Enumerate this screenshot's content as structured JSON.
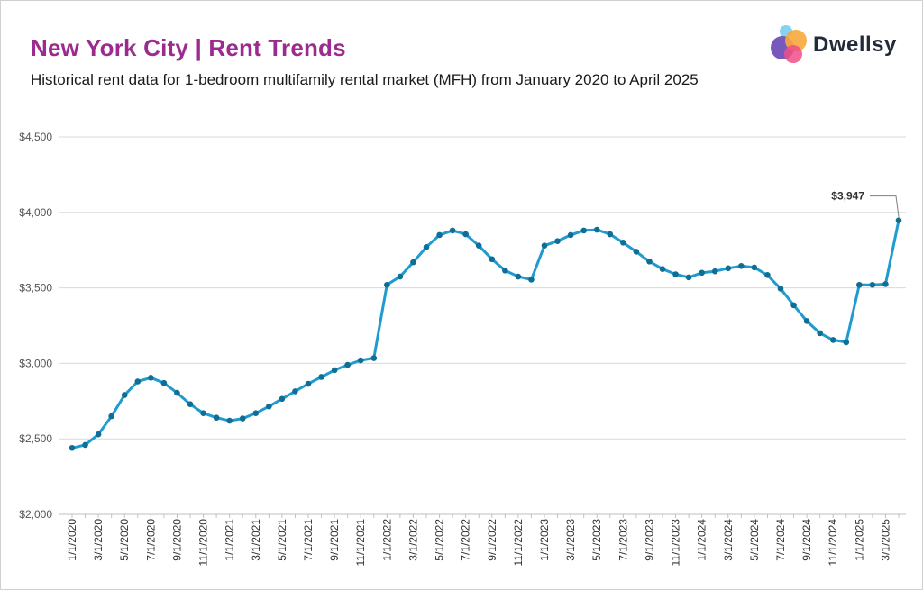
{
  "header": {
    "title": "New York City | Rent Trends",
    "subtitle": "Historical rent data for 1-bedroom multifamily rental market (MFH) from January 2020 to April 2025"
  },
  "logo": {
    "text": "Dwellsy",
    "icon": "dwellsy-logo-icon"
  },
  "colors": {
    "line": "#1f9bd1",
    "marker": "#0e6e95",
    "title": "#9b2b8f",
    "grid": "#d9d9d9"
  },
  "chart_data": {
    "type": "line",
    "title": "New York City | Rent Trends",
    "subtitle": "Historical rent data for 1-bedroom multifamily rental market (MFH) from January 2020 to April 2025",
    "ylim": [
      2000,
      4500
    ],
    "yticks": [
      2000,
      2500,
      3000,
      3500,
      4000,
      4500
    ],
    "ytick_labels": [
      "$2,000",
      "$2,500",
      "$3,000",
      "$3,500",
      "$4,000",
      "$4,500"
    ],
    "xtick_labels": [
      "1/1/2020",
      "3/1/2020",
      "5/1/2020",
      "7/1/2020",
      "9/1/2020",
      "11/1/2020",
      "1/1/2021",
      "3/1/2021",
      "5/1/2021",
      "7/1/2021",
      "9/1/2021",
      "11/1/2021",
      "1/1/2022",
      "3/1/2022",
      "5/1/2022",
      "7/1/2022",
      "9/1/2022",
      "11/1/2022",
      "1/1/2023",
      "3/1/2023",
      "5/1/2023",
      "7/1/2023",
      "9/1/2023",
      "11/1/2023",
      "1/1/2024",
      "3/1/2024",
      "5/1/2024",
      "7/1/2024",
      "9/1/2024",
      "11/1/2024",
      "1/1/2025",
      "3/1/2025"
    ],
    "grid": true,
    "legend": "none",
    "x": [
      "1/1/2020",
      "2/1/2020",
      "3/1/2020",
      "4/1/2020",
      "5/1/2020",
      "6/1/2020",
      "7/1/2020",
      "8/1/2020",
      "9/1/2020",
      "10/1/2020",
      "11/1/2020",
      "12/1/2020",
      "1/1/2021",
      "2/1/2021",
      "3/1/2021",
      "4/1/2021",
      "5/1/2021",
      "6/1/2021",
      "7/1/2021",
      "8/1/2021",
      "9/1/2021",
      "10/1/2021",
      "11/1/2021",
      "12/1/2021",
      "1/1/2022",
      "2/1/2022",
      "3/1/2022",
      "4/1/2022",
      "5/1/2022",
      "6/1/2022",
      "7/1/2022",
      "8/1/2022",
      "9/1/2022",
      "10/1/2022",
      "11/1/2022",
      "12/1/2022",
      "1/1/2023",
      "2/1/2023",
      "3/1/2023",
      "4/1/2023",
      "5/1/2023",
      "6/1/2023",
      "7/1/2023",
      "8/1/2023",
      "9/1/2023",
      "10/1/2023",
      "11/1/2023",
      "12/1/2023",
      "1/1/2024",
      "2/1/2024",
      "3/1/2024",
      "4/1/2024",
      "5/1/2024",
      "6/1/2024",
      "7/1/2024",
      "8/1/2024",
      "9/1/2024",
      "10/1/2024",
      "11/1/2024",
      "12/1/2024",
      "1/1/2025",
      "2/1/2025",
      "3/1/2025",
      "4/1/2025"
    ],
    "series": [
      {
        "values": [
          2440,
          2460,
          2530,
          2650,
          2790,
          2880,
          2905,
          2870,
          2805,
          2730,
          2670,
          2640,
          2620,
          2635,
          2670,
          2715,
          2765,
          2815,
          2865,
          2910,
          2955,
          2990,
          3020,
          3035,
          3520,
          3575,
          3670,
          3770,
          3850,
          3880,
          3855,
          3780,
          3690,
          3615,
          3575,
          3555,
          3780,
          3810,
          3850,
          3880,
          3885,
          3855,
          3800,
          3740,
          3675,
          3625,
          3590,
          3570,
          3600,
          3610,
          3630,
          3645,
          3635,
          3585,
          3495,
          3385,
          3280,
          3200,
          3155,
          3140,
          3520,
          3520,
          3525,
          3947
        ]
      }
    ],
    "annotations": [
      {
        "x": "4/1/2025",
        "label": "$3,947"
      }
    ]
  }
}
